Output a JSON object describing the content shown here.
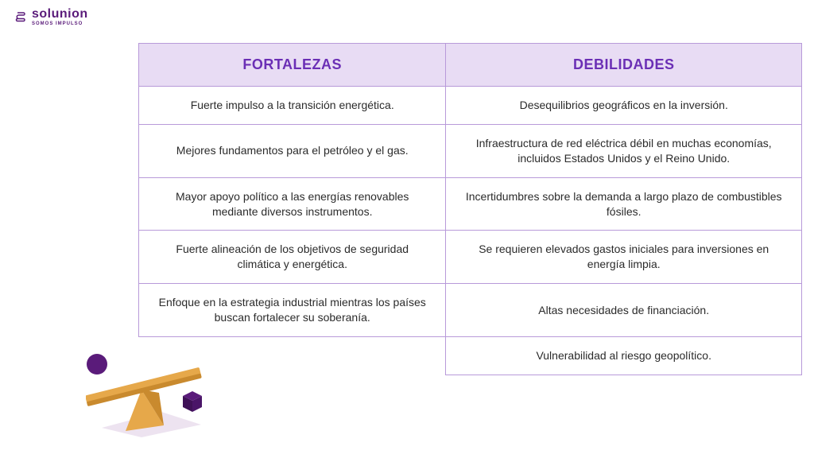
{
  "brand": {
    "name": "solunion",
    "tagline": "SOMOS IMPULSO",
    "color": "#5a1b7a"
  },
  "table": {
    "border_color": "#b89ad9",
    "header_bg": "#e8dcf4",
    "header_color": "#6b2fb5",
    "cell_text_color": "#2b2b2b",
    "columns": [
      "FORTALEZAS",
      "DEBILIDADES"
    ],
    "rows": [
      [
        "Fuerte impulso a la transición energética.",
        "Desequilibrios geográficos en la inversión."
      ],
      [
        "Mejores fundamentos para el petróleo y el gas.",
        "Infraestructura de red eléctrica débil en muchas economías, incluidos Estados Unidos y el Reino Unido."
      ],
      [
        "Mayor apoyo político a las energías renovables mediante diversos instrumentos.",
        "Incertidumbres sobre la demanda a largo plazo de combustibles fósiles."
      ],
      [
        "Fuerte alineación de los objetivos de seguridad climática y energética.",
        "Se requieren elevados gastos iniciales para inversiones en energía limpia."
      ],
      [
        "Enfoque en la estrategia industrial mientras los países buscan fortalecer su soberanía.",
        "Altas necesidades de financiación."
      ],
      [
        "",
        "Vulnerabilidad al riesgo geopolítico."
      ]
    ]
  },
  "seesaw": {
    "plank_color": "#e6a84a",
    "plank_shadow": "#c98a2e",
    "ball_color": "#5a1b7a",
    "cube_color": "#5a1b7a",
    "base_color": "#e6a84a",
    "ground_shadow": "#ede3f0"
  }
}
